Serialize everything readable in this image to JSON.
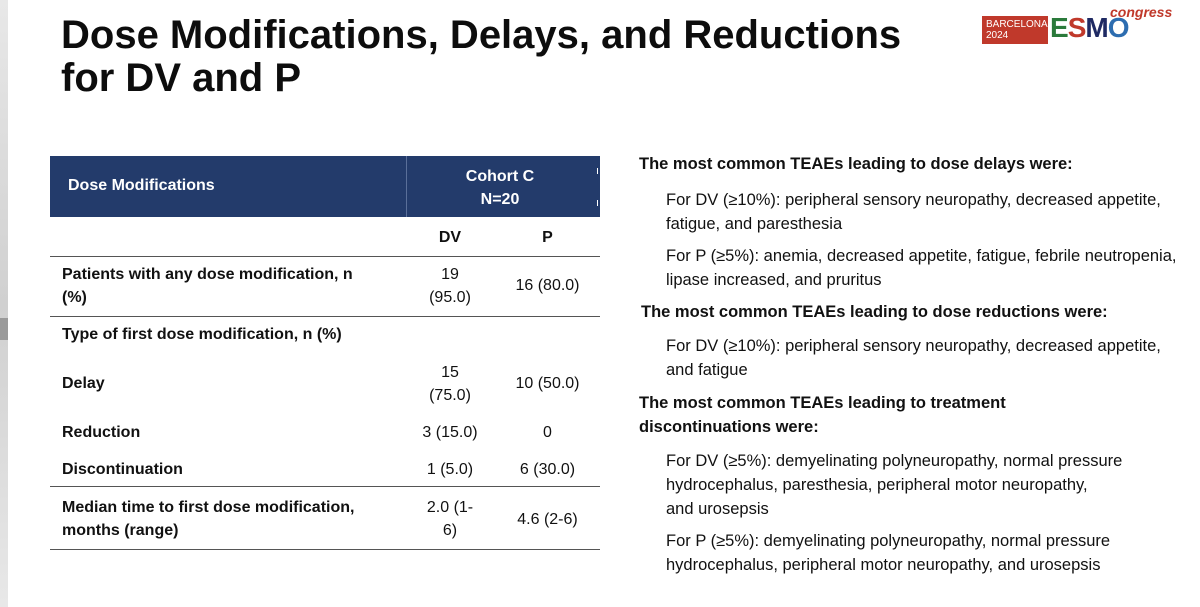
{
  "title": {
    "line1": "Dose Modifications, Delays, and Reductions",
    "line2": "for DV and P"
  },
  "logo": {
    "city": "BARCELONA",
    "year": "2024",
    "brand_e": "E",
    "brand_s": "S",
    "brand_m": "M",
    "brand_o": "O",
    "suffix": "congress"
  },
  "table": {
    "header_left": "Dose Modifications",
    "cohort_line1": "Cohort C",
    "cohort_line2": "N=20",
    "subheader": {
      "dv": "DV",
      "p": "P"
    },
    "rows": {
      "any_mod": {
        "label1": "Patients with any dose modification, n",
        "label2": "(%)",
        "dv1": "19",
        "dv2": "(95.0)",
        "p": "16 (80.0)"
      },
      "type_first": {
        "label": "Type of first dose modification, n (%)"
      },
      "delay": {
        "label": "Delay",
        "dv1": "15",
        "dv2": "(75.0)",
        "p": "10 (50.0)"
      },
      "reduction": {
        "label": "Reduction",
        "dv": "3 (15.0)",
        "p": "0"
      },
      "discontinuation": {
        "label": "Discontinuation",
        "dv": "1 (5.0)",
        "p": "6 (30.0)"
      },
      "median_time": {
        "label1": "Median time to first dose modification,",
        "label2": "months (range)",
        "dv1": "2.0 (1-",
        "dv2": "6)",
        "p": "4.6 (2-6)"
      }
    }
  },
  "notes": {
    "delays_heading": "The most common TEAEs leading to dose delays were:",
    "delays_dv_1": "For DV (≥10%): peripheral sensory neuropathy, decreased appetite,",
    "delays_dv_2": "fatigue, and paresthesia",
    "delays_p_1": "For P (≥5%): anemia, decreased appetite, fatigue, febrile neutropenia,",
    "delays_p_2": "lipase increased, and pruritus",
    "reductions_heading": "The most common TEAEs leading to dose reductions were:",
    "reductions_dv_1": "For DV (≥10%): peripheral sensory neuropathy, decreased appetite,",
    "reductions_dv_2": "and fatigue",
    "discont_heading_1": "The most common TEAEs leading to treatment",
    "discont_heading_2": "discontinuations were:",
    "discont_dv_1": "For DV (≥5%): demyelinating polyneuropathy, normal pressure",
    "discont_dv_2": "hydrocephalus, paresthesia, peripheral motor neuropathy,",
    "discont_dv_3": "and urosepsis",
    "discont_p_1": "For P (≥5%): demyelinating polyneuropathy, normal pressure",
    "discont_p_2": "hydrocephalus, peripheral motor neuropathy, and urosepsis"
  }
}
